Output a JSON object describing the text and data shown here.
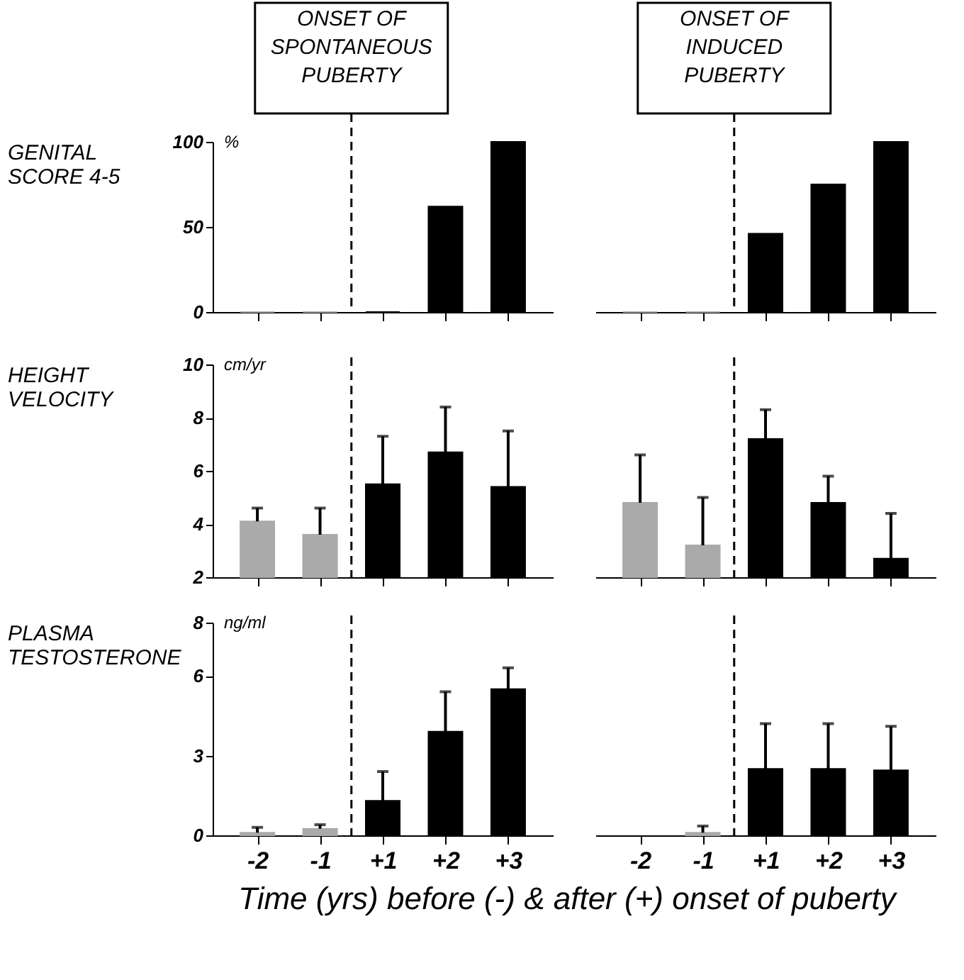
{
  "chart_data": [
    {
      "type": "bar",
      "ylabel": "GENITAL SCORE 4-5",
      "annotations": [
        "%",
        "ONSET OF SPONTANEOUS PUBERTY"
      ],
      "categories": [
        "-2",
        "-1",
        "+1",
        "+2",
        "+3"
      ],
      "values": [
        0,
        0,
        0,
        62,
        100
      ],
      "colors": [
        "#aaaaaa",
        "#aaaaaa",
        "#000000",
        "#000000",
        "#000000"
      ],
      "ylim": [
        0,
        100
      ],
      "yticks": [
        0,
        50,
        100
      ],
      "tick_labels": "y"
    },
    {
      "type": "bar",
      "annotations": [
        "ONSET OF INDUCED PUBERTY"
      ],
      "categories": [
        "-2",
        "-1",
        "+1",
        "+2",
        "+3"
      ],
      "values": [
        0,
        0,
        46,
        75,
        100
      ],
      "colors": [
        "#aaaaaa",
        "#aaaaaa",
        "#000000",
        "#000000",
        "#000000"
      ],
      "ylim": [
        0,
        100
      ],
      "tick_labels": false
    },
    {
      "type": "bar",
      "ylabel": "HEIGHT VELOCITY",
      "annotations": [
        "cm/yr"
      ],
      "categories": [
        "-2",
        "-1",
        "+1",
        "+2",
        "+3"
      ],
      "values": [
        4.1,
        3.6,
        5.5,
        6.7,
        5.4
      ],
      "errors": [
        [
          4.1,
          4.6
        ],
        [
          3.6,
          4.6
        ],
        [
          5.5,
          7.3
        ],
        [
          6.7,
          8.4
        ],
        [
          5.4,
          7.5
        ]
      ],
      "colors": [
        "#aaaaaa",
        "#aaaaaa",
        "#000000",
        "#000000",
        "#000000"
      ],
      "ylim": [
        2,
        10
      ],
      "yticks": [
        2,
        4,
        6,
        8,
        10
      ],
      "tick_labels": "y"
    },
    {
      "type": "bar",
      "categories": [
        "-2",
        "-1",
        "+1",
        "+2",
        "+3"
      ],
      "values": [
        4.8,
        3.2,
        7.2,
        4.8,
        2.7
      ],
      "errors": [
        [
          4.8,
          6.6
        ],
        [
          3.2,
          5.0
        ],
        [
          7.2,
          8.3
        ],
        [
          4.8,
          5.8
        ],
        [
          2.7,
          4.4
        ]
      ],
      "colors": [
        "#aaaaaa",
        "#aaaaaa",
        "#000000",
        "#000000",
        "#000000"
      ],
      "ylim": [
        2,
        10
      ],
      "tick_labels": false
    },
    {
      "type": "bar",
      "ylabel": "PLASMA TESTOSTERONE",
      "xlabel": "Time (yrs) before (-) & after (+) onset of puberty",
      "annotations": [
        "ng/ml"
      ],
      "categories": [
        "-2",
        "-1",
        "+1",
        "+2",
        "+3"
      ],
      "values": [
        0.1,
        0.25,
        1.3,
        3.9,
        5.5
      ],
      "errors": [
        [
          0.1,
          0.3
        ],
        [
          0.25,
          0.4
        ],
        [
          1.3,
          2.4
        ],
        [
          3.9,
          5.4
        ],
        [
          5.5,
          6.3
        ]
      ],
      "colors": [
        "#aaaaaa",
        "#aaaaaa",
        "#000000",
        "#000000",
        "#000000"
      ],
      "ylim": [
        0,
        8
      ],
      "yticks": [
        0,
        3,
        6,
        8
      ]
    },
    {
      "type": "bar",
      "categories": [
        "-2",
        "-1",
        "+1",
        "+2",
        "+3"
      ],
      "values": [
        null,
        0.1,
        2.5,
        2.5,
        2.45
      ],
      "errors": [
        null,
        [
          0.1,
          0.35
        ],
        [
          2.5,
          4.2
        ],
        [
          2.5,
          4.2
        ],
        [
          2.45,
          4.1
        ]
      ],
      "colors": [
        "#aaaaaa",
        "#aaaaaa",
        "#000000",
        "#000000",
        "#000000"
      ],
      "ylim": [
        0,
        8
      ],
      "tick_labels": "x"
    }
  ]
}
